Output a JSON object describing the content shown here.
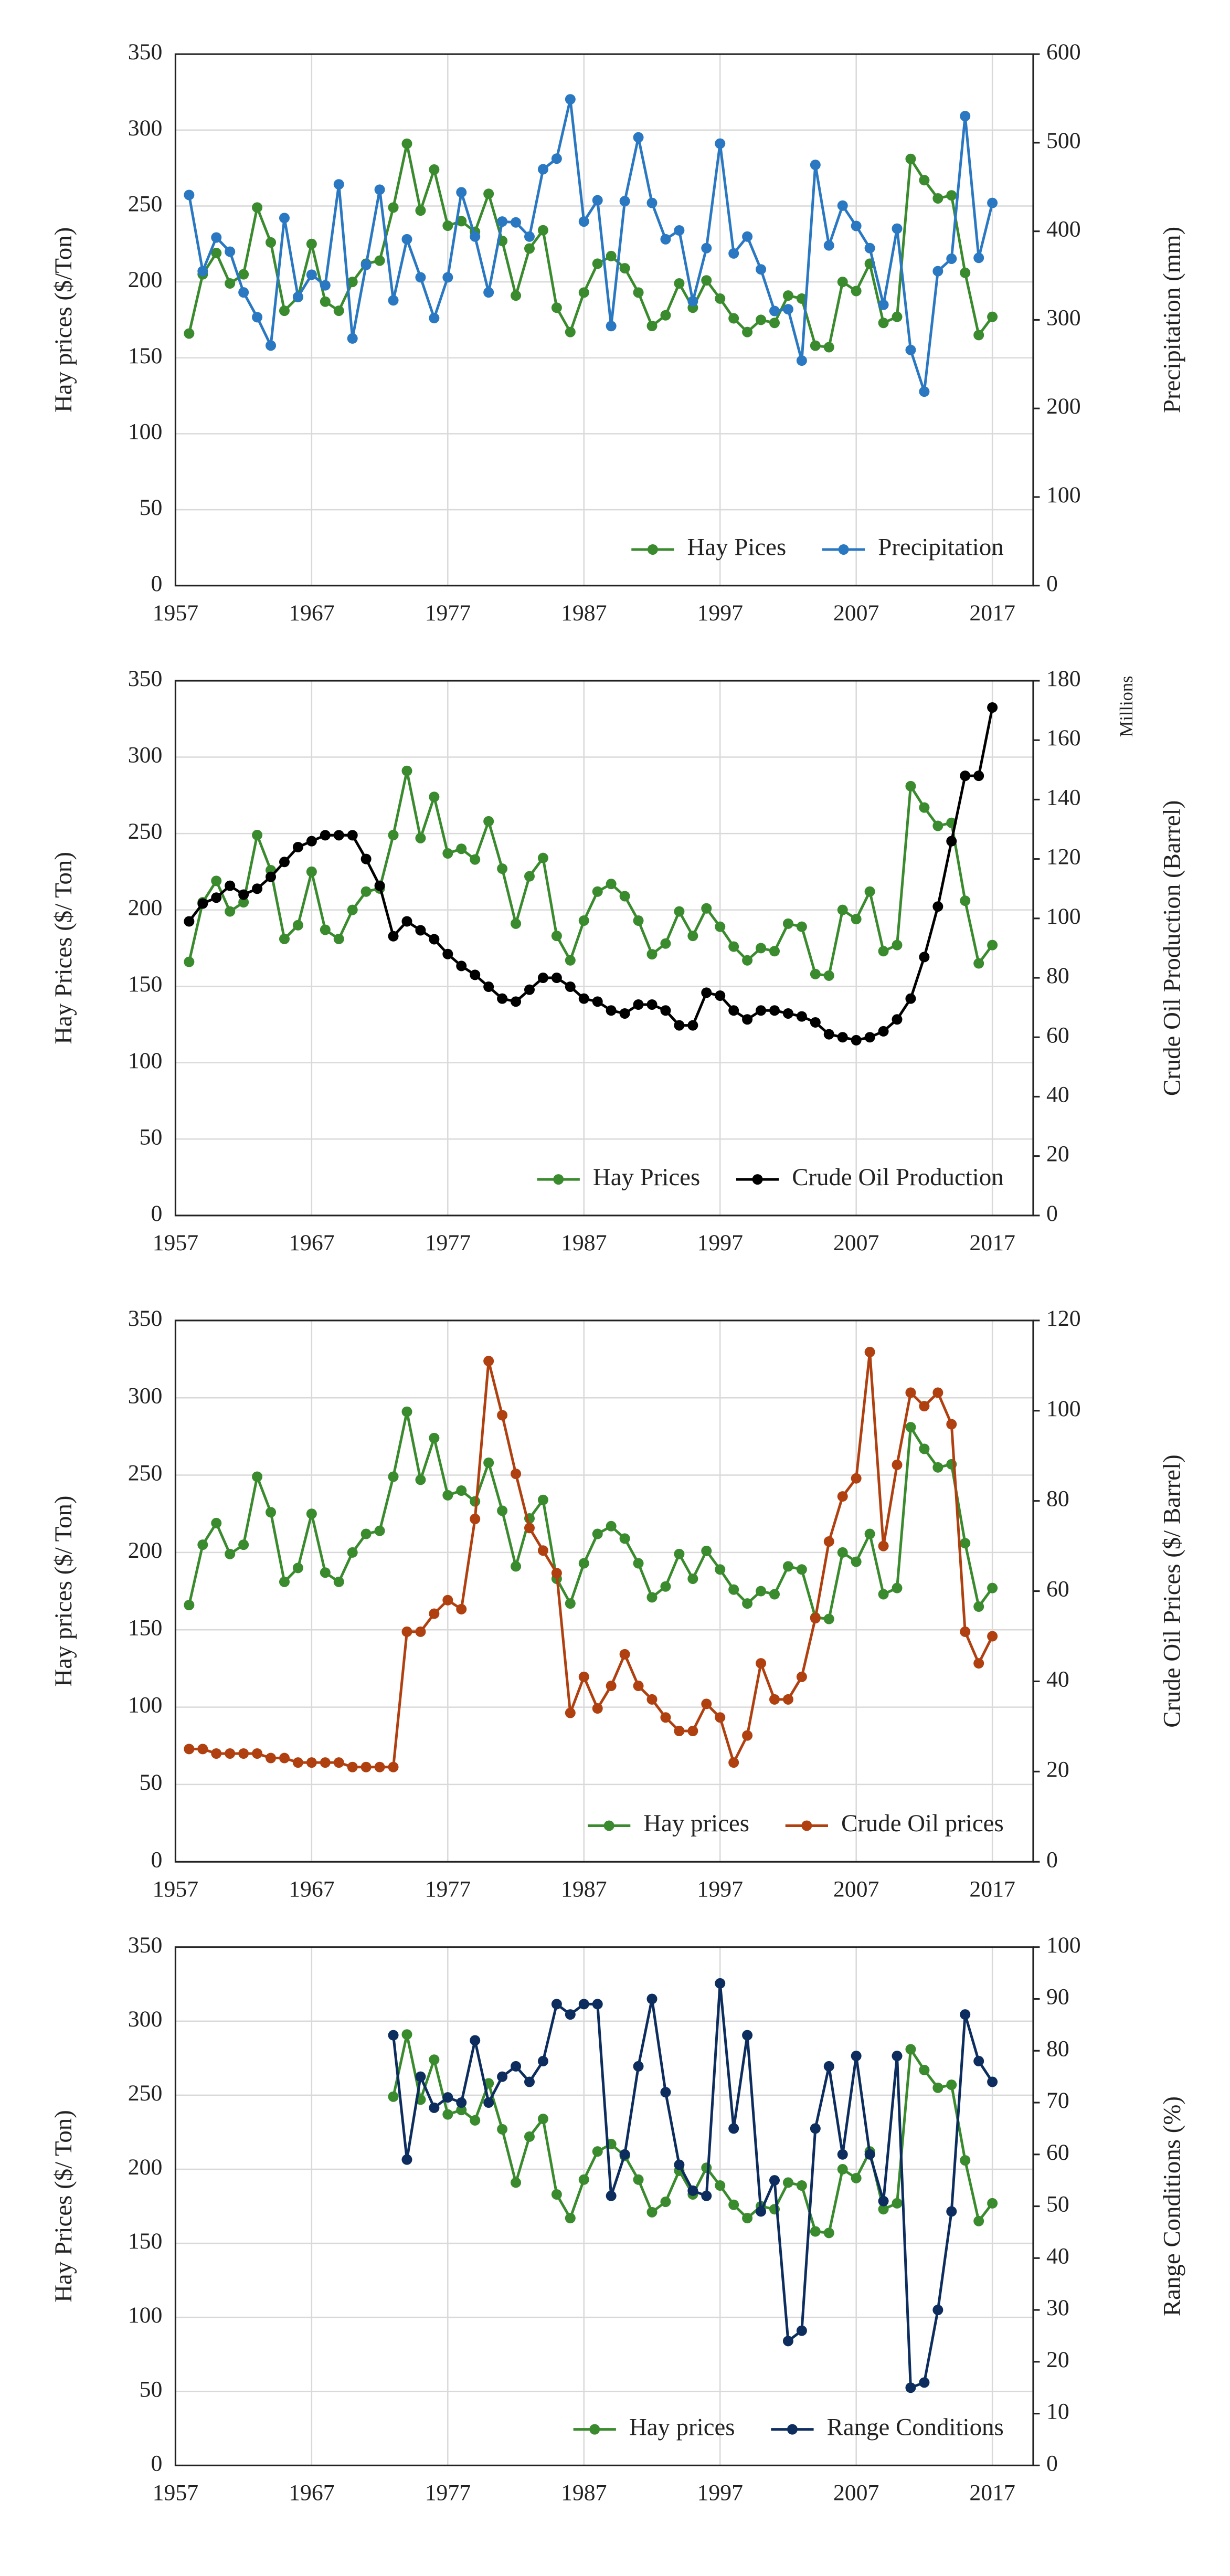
{
  "chart_data": [
    {
      "type": "line",
      "x": [
        1958,
        1959,
        1960,
        1961,
        1962,
        1963,
        1964,
        1965,
        1966,
        1967,
        1968,
        1969,
        1970,
        1971,
        1972,
        1973,
        1974,
        1975,
        1976,
        1977,
        1978,
        1979,
        1980,
        1981,
        1982,
        1983,
        1984,
        1985,
        1986,
        1987,
        1988,
        1989,
        1990,
        1991,
        1992,
        1993,
        1994,
        1995,
        1996,
        1997,
        1998,
        1999,
        2000,
        2001,
        2002,
        2003,
        2004,
        2005,
        2006,
        2007,
        2008,
        2009,
        2010,
        2011,
        2012,
        2013,
        2014,
        2015,
        2016,
        2017
      ],
      "series": [
        {
          "name": "Hay Pices",
          "color": "#3a8a2e",
          "axis": "y",
          "values": [
            166,
            205,
            219,
            199,
            205,
            249,
            226,
            181,
            190,
            225,
            187,
            181,
            200,
            212,
            214,
            249,
            291,
            247,
            274,
            237,
            240,
            233,
            258,
            227,
            191,
            222,
            234,
            183,
            167,
            193,
            212,
            217,
            209,
            193,
            171,
            178,
            199,
            183,
            201,
            189,
            176,
            167,
            175,
            173,
            191,
            189,
            158,
            157,
            200,
            194,
            212,
            173,
            177,
            281,
            267,
            255,
            257,
            206,
            165,
            177
          ]
        },
        {
          "name": "Precipitation",
          "color": "#2a78c2",
          "axis": "y2",
          "values": [
            441,
            355,
            393,
            377,
            331,
            303,
            271,
            415,
            326,
            351,
            339,
            453,
            279,
            362,
            447,
            322,
            391,
            348,
            302,
            348,
            444,
            394,
            331,
            411,
            410,
            394,
            470,
            482,
            549,
            411,
            435,
            293,
            434,
            506,
            432,
            391,
            401,
            321,
            381,
            499,
            375,
            394,
            357,
            310,
            312,
            254,
            475,
            384,
            429,
            406,
            381,
            317,
            403,
            266,
            219,
            355,
            369,
            530,
            370,
            432
          ]
        }
      ],
      "xlim": [
        1957,
        2020
      ],
      "xticks": [
        1957,
        1967,
        1977,
        1987,
        1997,
        2007,
        2017
      ],
      "ylim": [
        0,
        350
      ],
      "yticks": [
        0,
        50,
        100,
        150,
        200,
        250,
        300,
        350
      ],
      "y2lim": [
        0,
        600
      ],
      "y2ticks": [
        0,
        100,
        200,
        300,
        400,
        500,
        600
      ],
      "ylabel": "Hay prices ($/Ton)",
      "y2label": "Precipitation  (mm)",
      "grid": true,
      "legend": "lower right"
    },
    {
      "type": "line",
      "x": [
        1958,
        1959,
        1960,
        1961,
        1962,
        1963,
        1964,
        1965,
        1966,
        1967,
        1968,
        1969,
        1970,
        1971,
        1972,
        1973,
        1974,
        1975,
        1976,
        1977,
        1978,
        1979,
        1980,
        1981,
        1982,
        1983,
        1984,
        1985,
        1986,
        1987,
        1988,
        1989,
        1990,
        1991,
        1992,
        1993,
        1994,
        1995,
        1996,
        1997,
        1998,
        1999,
        2000,
        2001,
        2002,
        2003,
        2004,
        2005,
        2006,
        2007,
        2008,
        2009,
        2010,
        2011,
        2012,
        2013,
        2014,
        2015,
        2016,
        2017
      ],
      "series": [
        {
          "name": "Hay Prices",
          "color": "#3a8a2e",
          "axis": "y",
          "values": [
            166,
            205,
            219,
            199,
            205,
            249,
            226,
            181,
            190,
            225,
            187,
            181,
            200,
            212,
            214,
            249,
            291,
            247,
            274,
            237,
            240,
            233,
            258,
            227,
            191,
            222,
            234,
            183,
            167,
            193,
            212,
            217,
            209,
            193,
            171,
            178,
            199,
            183,
            201,
            189,
            176,
            167,
            175,
            173,
            191,
            189,
            158,
            157,
            200,
            194,
            212,
            173,
            177,
            281,
            267,
            255,
            257,
            206,
            165,
            177
          ]
        },
        {
          "name": "Crude Oil Production",
          "color": "#000000",
          "axis": "y2",
          "values": [
            99,
            105,
            107,
            111,
            108,
            110,
            114,
            119,
            124,
            126,
            128,
            128,
            128,
            120,
            111,
            94,
            99,
            96,
            93,
            88,
            84,
            81,
            77,
            73,
            72,
            76,
            80,
            80,
            77,
            73,
            72,
            69,
            68,
            71,
            71,
            69,
            64,
            64,
            75,
            74,
            69,
            66,
            69,
            69,
            68,
            67,
            65,
            61,
            60,
            59,
            60,
            62,
            66,
            73,
            87,
            104,
            126,
            148,
            148,
            171
          ]
        }
      ],
      "xlim": [
        1957,
        2020
      ],
      "xticks": [
        1957,
        1967,
        1977,
        1987,
        1997,
        2007,
        2017
      ],
      "ylim": [
        0,
        350
      ],
      "yticks": [
        0,
        50,
        100,
        150,
        200,
        250,
        300,
        350
      ],
      "y2lim": [
        0,
        180
      ],
      "y2ticks": [
        0,
        20,
        40,
        60,
        80,
        100,
        120,
        140,
        160,
        180
      ],
      "ylabel": "Hay Prices ($/ Ton)",
      "y2label": "Crude Oil Production  (Barrel)",
      "annotation": "Millions",
      "grid": true,
      "legend": "lower right"
    },
    {
      "type": "line",
      "x": [
        1958,
        1959,
        1960,
        1961,
        1962,
        1963,
        1964,
        1965,
        1966,
        1967,
        1968,
        1969,
        1970,
        1971,
        1972,
        1973,
        1974,
        1975,
        1976,
        1977,
        1978,
        1979,
        1980,
        1981,
        1982,
        1983,
        1984,
        1985,
        1986,
        1987,
        1988,
        1989,
        1990,
        1991,
        1992,
        1993,
        1994,
        1995,
        1996,
        1997,
        1998,
        1999,
        2000,
        2001,
        2002,
        2003,
        2004,
        2005,
        2006,
        2007,
        2008,
        2009,
        2010,
        2011,
        2012,
        2013,
        2014,
        2015,
        2016,
        2017
      ],
      "series": [
        {
          "name": "Hay prices",
          "color": "#3a8a2e",
          "axis": "y",
          "values": [
            166,
            205,
            219,
            199,
            205,
            249,
            226,
            181,
            190,
            225,
            187,
            181,
            200,
            212,
            214,
            249,
            291,
            247,
            274,
            237,
            240,
            233,
            258,
            227,
            191,
            222,
            234,
            183,
            167,
            193,
            212,
            217,
            209,
            193,
            171,
            178,
            199,
            183,
            201,
            189,
            176,
            167,
            175,
            173,
            191,
            189,
            158,
            157,
            200,
            194,
            212,
            173,
            177,
            281,
            267,
            255,
            257,
            206,
            165,
            177
          ]
        },
        {
          "name": "Crude Oil prices",
          "color": "#b0400f",
          "axis": "y2",
          "values": [
            25,
            25,
            24,
            24,
            24,
            24,
            23,
            23,
            22,
            22,
            22,
            22,
            21,
            21,
            21,
            21,
            51,
            51,
            55,
            58,
            56,
            76,
            111,
            99,
            86,
            74,
            69,
            64,
            33,
            41,
            34,
            39,
            46,
            39,
            36,
            32,
            29,
            29,
            35,
            32,
            22,
            28,
            44,
            36,
            36,
            41,
            54,
            71,
            81,
            85,
            113,
            70,
            88,
            104,
            101,
            104,
            97,
            51,
            44,
            50
          ]
        }
      ],
      "xlim": [
        1957,
        2020
      ],
      "xticks": [
        1957,
        1967,
        1977,
        1987,
        1997,
        2007,
        2017
      ],
      "ylim": [
        0,
        350
      ],
      "yticks": [
        0,
        50,
        100,
        150,
        200,
        250,
        300,
        350
      ],
      "y2lim": [
        0,
        120
      ],
      "y2ticks": [
        0,
        20,
        40,
        60,
        80,
        100,
        120
      ],
      "ylabel": "Hay prices ($/ Ton)",
      "y2label": "Crude Oil Prices ($/ Barrel)",
      "grid": true,
      "legend": "lower right"
    },
    {
      "type": "line",
      "x": [
        1973,
        1974,
        1975,
        1976,
        1977,
        1978,
        1979,
        1980,
        1981,
        1982,
        1983,
        1984,
        1985,
        1986,
        1987,
        1988,
        1989,
        1990,
        1991,
        1992,
        1993,
        1994,
        1995,
        1996,
        1997,
        1998,
        1999,
        2000,
        2001,
        2002,
        2003,
        2004,
        2005,
        2006,
        2007,
        2008,
        2009,
        2010,
        2011,
        2012,
        2013,
        2014,
        2015,
        2016,
        2017
      ],
      "series": [
        {
          "name": "Hay prices",
          "color": "#3a8a2e",
          "axis": "y",
          "values": [
            249,
            291,
            247,
            274,
            237,
            240,
            233,
            258,
            227,
            191,
            222,
            234,
            183,
            167,
            193,
            212,
            217,
            209,
            193,
            171,
            178,
            199,
            183,
            201,
            189,
            176,
            167,
            175,
            173,
            191,
            189,
            158,
            157,
            200,
            194,
            212,
            173,
            177,
            281,
            267,
            255,
            257,
            206,
            165,
            177
          ]
        },
        {
          "name": "Range Conditions",
          "color": "#0c2d5e",
          "axis": "y2",
          "values": [
            83,
            59,
            75,
            69,
            71,
            70,
            82,
            70,
            75,
            77,
            74,
            78,
            89,
            87,
            89,
            89,
            52,
            60,
            77,
            90,
            72,
            58,
            53,
            52,
            93,
            65,
            83,
            49,
            55,
            24,
            26,
            65,
            77,
            60,
            79,
            60,
            51,
            79,
            15,
            16,
            30,
            49,
            87,
            78,
            74
          ]
        }
      ],
      "xlim": [
        1957,
        2020
      ],
      "xticks": [
        1957,
        1967,
        1977,
        1987,
        1997,
        2007,
        2017
      ],
      "ylim": [
        0,
        350
      ],
      "yticks": [
        0,
        50,
        100,
        150,
        200,
        250,
        300,
        350
      ],
      "y2lim": [
        0,
        100
      ],
      "y2ticks": [
        0,
        10,
        20,
        30,
        40,
        50,
        60,
        70,
        80,
        90,
        100
      ],
      "ylabel": "Hay Prices ($/ Ton)",
      "y2label": "Range Conditions  (%)",
      "grid": true,
      "legend": "lower right"
    }
  ]
}
